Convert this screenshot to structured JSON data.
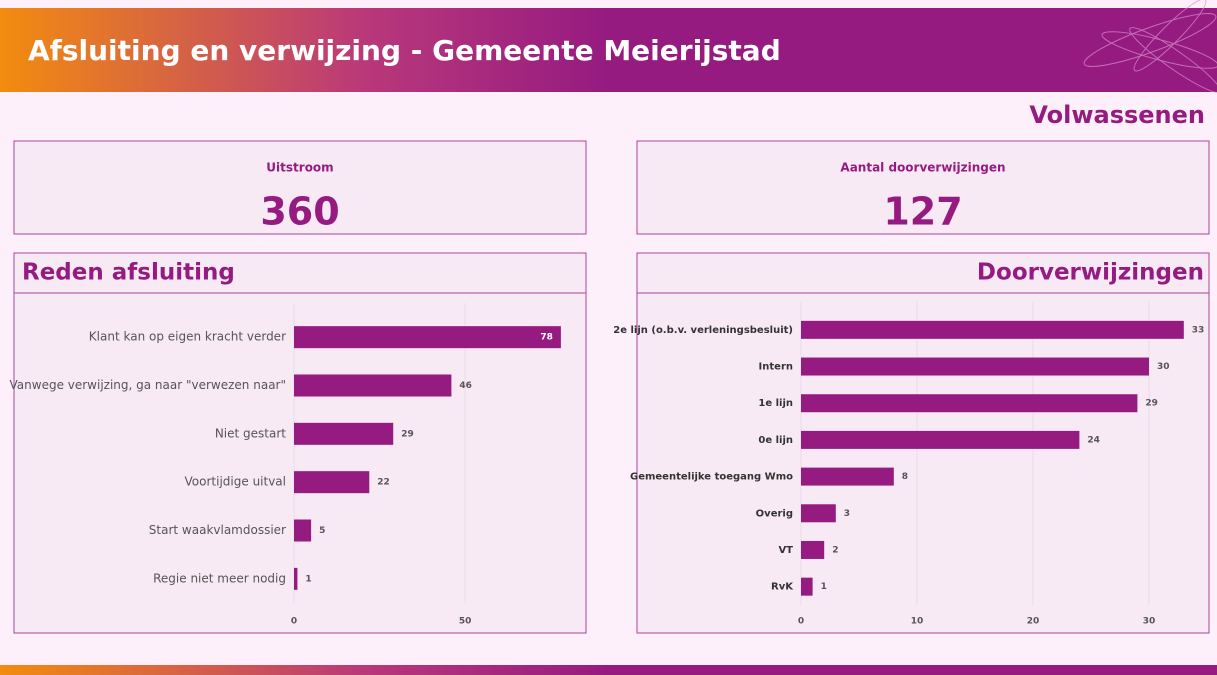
{
  "header": {
    "title": "Afsluiting en verwijzing - Gemeente Meierijstad"
  },
  "section": "Volwassenen",
  "kpis": [
    {
      "label": "Uitstroom",
      "value": 360
    },
    {
      "label": "Aantal doorverwijzingen",
      "value": 127
    }
  ],
  "chart_data": [
    {
      "type": "bar",
      "orientation": "horizontal",
      "title": "Reden afsluiting",
      "categories": [
        "Klant kan op eigen kracht verder",
        "Vanwege verwijzing, ga naar \"verwezen naar\"",
        "Niet gestart",
        "Voortijdige uitval",
        "Start waakvlamdossier",
        "Regie niet meer nodig"
      ],
      "values": [
        78,
        46,
        29,
        22,
        5,
        1
      ],
      "color": "#951b81",
      "xlim": [
        0,
        83
      ],
      "xticks": [
        0,
        50
      ],
      "grid": true
    },
    {
      "type": "bar",
      "orientation": "horizontal",
      "title": "Doorverwijzingen",
      "categories": [
        "2e lijn (o.b.v. verleningsbesluit)",
        "Intern",
        "1e lijn",
        "0e lijn",
        "Gemeentelijke toegang Wmo",
        "Overig",
        "VT",
        "RvK"
      ],
      "values": [
        33,
        30,
        29,
        24,
        8,
        3,
        2,
        1
      ],
      "color": "#951b81",
      "xlim": [
        0,
        35
      ],
      "xticks": [
        0,
        10,
        20,
        30
      ],
      "grid": true
    }
  ]
}
